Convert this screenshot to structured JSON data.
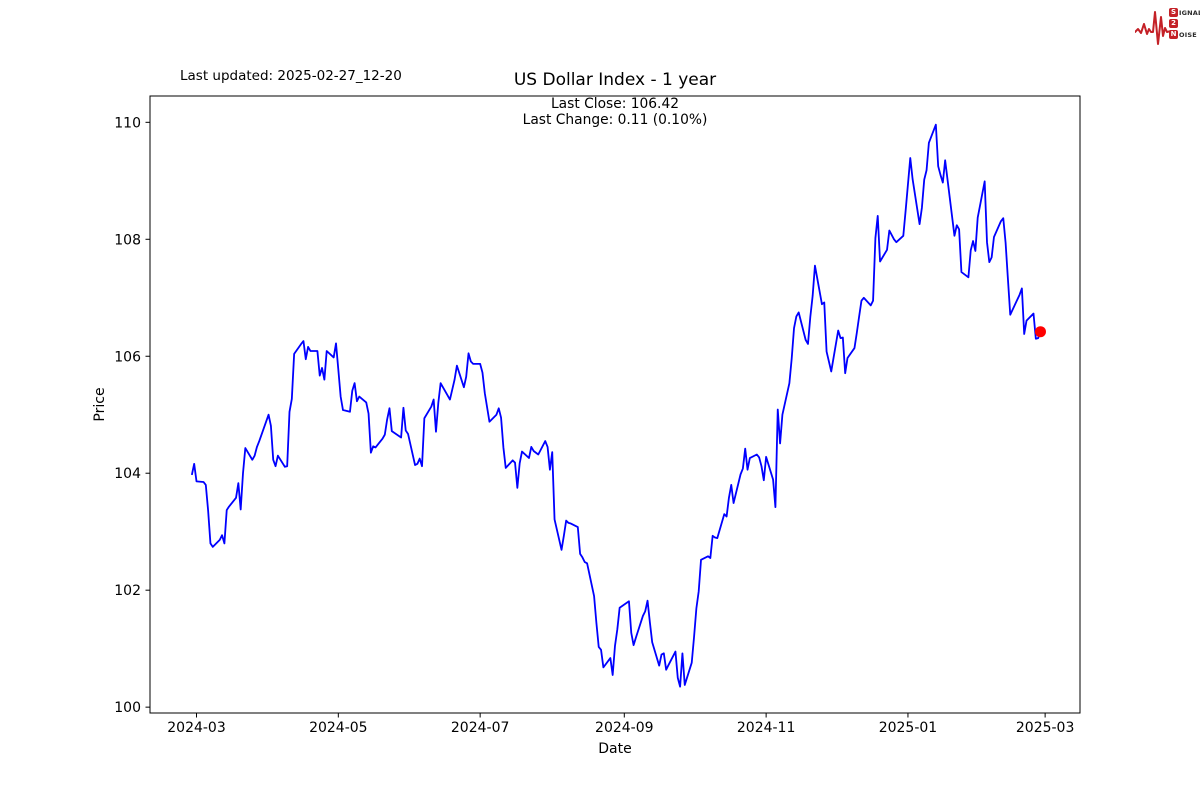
{
  "header": {
    "last_updated": "Last updated: 2025-02-27_12-20",
    "title": "US Dollar Index - 1 year",
    "annotation_line1": "Last Close: 106.42",
    "annotation_line2": "Last Change: 0.11 (0.10%)"
  },
  "logo": {
    "badge1": "S",
    "word1": "IGNAL",
    "badge2": "2",
    "badge3": "N",
    "word2": "OISE",
    "red": "#c42127"
  },
  "chart_data": {
    "type": "line",
    "title": "US Dollar Index - 1 year",
    "xlabel": "Date",
    "ylabel": "Price",
    "grid": false,
    "x_ticks": [
      {
        "date": "2024-03-01",
        "label": "2024-03"
      },
      {
        "date": "2024-05-01",
        "label": "2024-05"
      },
      {
        "date": "2024-07-01",
        "label": "2024-07"
      },
      {
        "date": "2024-09-01",
        "label": "2024-09"
      },
      {
        "date": "2024-11-01",
        "label": "2024-11"
      },
      {
        "date": "2025-01-01",
        "label": "2025-01"
      },
      {
        "date": "2025-03-01",
        "label": "2025-03"
      }
    ],
    "y_ticks": [
      100,
      102,
      104,
      106,
      108,
      110
    ],
    "xlim": [
      "2024-02-10",
      "2025-03-16"
    ],
    "ylim": [
      99.9,
      110.45
    ],
    "line_color": "#0000ff",
    "line_width": 1.8,
    "marker_color": "#ff0000",
    "marker_radius": 5.5,
    "last_close": 106.42,
    "last_change": 0.11,
    "last_change_pct": "0.10%",
    "series": [
      {
        "name": "US Dollar Index",
        "points": [
          [
            "2024-02-28",
            103.97
          ],
          [
            "2024-02-29",
            104.16
          ],
          [
            "2024-03-01",
            103.86
          ],
          [
            "2024-03-04",
            103.85
          ],
          [
            "2024-03-05",
            103.8
          ],
          [
            "2024-03-06",
            103.36
          ],
          [
            "2024-03-07",
            102.8
          ],
          [
            "2024-03-08",
            102.74
          ],
          [
            "2024-03-11",
            102.86
          ],
          [
            "2024-03-12",
            102.94
          ],
          [
            "2024-03-13",
            102.8
          ],
          [
            "2024-03-14",
            103.37
          ],
          [
            "2024-03-15",
            103.43
          ],
          [
            "2024-03-18",
            103.58
          ],
          [
            "2024-03-19",
            103.83
          ],
          [
            "2024-03-20",
            103.38
          ],
          [
            "2024-03-21",
            104.0
          ],
          [
            "2024-03-22",
            104.43
          ],
          [
            "2024-03-25",
            104.23
          ],
          [
            "2024-03-26",
            104.3
          ],
          [
            "2024-03-27",
            104.45
          ],
          [
            "2024-03-28",
            104.55
          ],
          [
            "2024-04-01",
            105.0
          ],
          [
            "2024-04-02",
            104.81
          ],
          [
            "2024-04-03",
            104.23
          ],
          [
            "2024-04-04",
            104.12
          ],
          [
            "2024-04-05",
            104.3
          ],
          [
            "2024-04-08",
            104.11
          ],
          [
            "2024-04-09",
            104.12
          ],
          [
            "2024-04-10",
            105.05
          ],
          [
            "2024-04-11",
            105.27
          ],
          [
            "2024-04-12",
            106.04
          ],
          [
            "2024-04-15",
            106.21
          ],
          [
            "2024-04-16",
            106.26
          ],
          [
            "2024-04-17",
            105.95
          ],
          [
            "2024-04-18",
            106.16
          ],
          [
            "2024-04-19",
            106.09
          ],
          [
            "2024-04-22",
            106.09
          ],
          [
            "2024-04-23",
            105.67
          ],
          [
            "2024-04-24",
            105.8
          ],
          [
            "2024-04-25",
            105.6
          ],
          [
            "2024-04-26",
            106.09
          ],
          [
            "2024-04-29",
            105.98
          ],
          [
            "2024-04-30",
            106.22
          ],
          [
            "2024-05-01",
            105.77
          ],
          [
            "2024-05-02",
            105.31
          ],
          [
            "2024-05-03",
            105.08
          ],
          [
            "2024-05-06",
            105.05
          ],
          [
            "2024-05-07",
            105.41
          ],
          [
            "2024-05-08",
            105.54
          ],
          [
            "2024-05-09",
            105.23
          ],
          [
            "2024-05-10",
            105.31
          ],
          [
            "2024-05-13",
            105.21
          ],
          [
            "2024-05-14",
            105.02
          ],
          [
            "2024-05-15",
            104.35
          ],
          [
            "2024-05-16",
            104.46
          ],
          [
            "2024-05-17",
            104.44
          ],
          [
            "2024-05-20",
            104.59
          ],
          [
            "2024-05-21",
            104.66
          ],
          [
            "2024-05-22",
            104.92
          ],
          [
            "2024-05-23",
            105.11
          ],
          [
            "2024-05-24",
            104.72
          ],
          [
            "2024-05-28",
            104.61
          ],
          [
            "2024-05-29",
            105.12
          ],
          [
            "2024-05-30",
            104.73
          ],
          [
            "2024-05-31",
            104.67
          ],
          [
            "2024-06-03",
            104.14
          ],
          [
            "2024-06-04",
            104.16
          ],
          [
            "2024-06-05",
            104.25
          ],
          [
            "2024-06-06",
            104.12
          ],
          [
            "2024-06-07",
            104.94
          ],
          [
            "2024-06-10",
            105.14
          ],
          [
            "2024-06-11",
            105.26
          ],
          [
            "2024-06-12",
            104.71
          ],
          [
            "2024-06-13",
            105.2
          ],
          [
            "2024-06-14",
            105.54
          ],
          [
            "2024-06-17",
            105.33
          ],
          [
            "2024-06-18",
            105.26
          ],
          [
            "2024-06-20",
            105.6
          ],
          [
            "2024-06-21",
            105.84
          ],
          [
            "2024-06-24",
            105.47
          ],
          [
            "2024-06-25",
            105.65
          ],
          [
            "2024-06-26",
            106.05
          ],
          [
            "2024-06-27",
            105.91
          ],
          [
            "2024-06-28",
            105.87
          ],
          [
            "2024-07-01",
            105.87
          ],
          [
            "2024-07-02",
            105.72
          ],
          [
            "2024-07-03",
            105.37
          ],
          [
            "2024-07-05",
            104.88
          ],
          [
            "2024-07-08",
            105.0
          ],
          [
            "2024-07-09",
            105.11
          ],
          [
            "2024-07-10",
            104.95
          ],
          [
            "2024-07-11",
            104.44
          ],
          [
            "2024-07-12",
            104.09
          ],
          [
            "2024-07-15",
            104.22
          ],
          [
            "2024-07-16",
            104.18
          ],
          [
            "2024-07-17",
            103.75
          ],
          [
            "2024-07-18",
            104.17
          ],
          [
            "2024-07-19",
            104.37
          ],
          [
            "2024-07-22",
            104.26
          ],
          [
            "2024-07-23",
            104.45
          ],
          [
            "2024-07-24",
            104.38
          ],
          [
            "2024-07-25",
            104.35
          ],
          [
            "2024-07-26",
            104.32
          ],
          [
            "2024-07-29",
            104.55
          ],
          [
            "2024-07-30",
            104.45
          ],
          [
            "2024-07-31",
            104.06
          ],
          [
            "2024-08-01",
            104.36
          ],
          [
            "2024-08-02",
            103.21
          ],
          [
            "2024-08-05",
            102.69
          ],
          [
            "2024-08-06",
            102.93
          ],
          [
            "2024-08-07",
            103.19
          ],
          [
            "2024-08-08",
            103.15
          ],
          [
            "2024-08-09",
            103.14
          ],
          [
            "2024-08-12",
            103.08
          ],
          [
            "2024-08-13",
            102.62
          ],
          [
            "2024-08-14",
            102.56
          ],
          [
            "2024-08-15",
            102.48
          ],
          [
            "2024-08-16",
            102.46
          ],
          [
            "2024-08-19",
            101.9
          ],
          [
            "2024-08-20",
            101.44
          ],
          [
            "2024-08-21",
            101.03
          ],
          [
            "2024-08-22",
            100.98
          ],
          [
            "2024-08-23",
            100.68
          ],
          [
            "2024-08-26",
            100.84
          ],
          [
            "2024-08-27",
            100.55
          ],
          [
            "2024-08-28",
            101.05
          ],
          [
            "2024-08-29",
            101.33
          ],
          [
            "2024-08-30",
            101.7
          ],
          [
            "2024-09-03",
            101.81
          ],
          [
            "2024-09-04",
            101.27
          ],
          [
            "2024-09-05",
            101.06
          ],
          [
            "2024-09-06",
            101.19
          ],
          [
            "2024-09-09",
            101.56
          ],
          [
            "2024-09-10",
            101.64
          ],
          [
            "2024-09-11",
            101.82
          ],
          [
            "2024-09-12",
            101.45
          ],
          [
            "2024-09-13",
            101.11
          ],
          [
            "2024-09-16",
            100.71
          ],
          [
            "2024-09-17",
            100.9
          ],
          [
            "2024-09-18",
            100.92
          ],
          [
            "2024-09-19",
            100.64
          ],
          [
            "2024-09-20",
            100.72
          ],
          [
            "2024-09-23",
            100.95
          ],
          [
            "2024-09-24",
            100.5
          ],
          [
            "2024-09-25",
            100.35
          ],
          [
            "2024-09-26",
            100.92
          ],
          [
            "2024-09-27",
            100.38
          ],
          [
            "2024-09-30",
            100.76
          ],
          [
            "2024-10-01",
            101.2
          ],
          [
            "2024-10-02",
            101.69
          ],
          [
            "2024-10-03",
            101.98
          ],
          [
            "2024-10-04",
            102.52
          ],
          [
            "2024-10-07",
            102.58
          ],
          [
            "2024-10-08",
            102.55
          ],
          [
            "2024-10-09",
            102.93
          ],
          [
            "2024-10-10",
            102.9
          ],
          [
            "2024-10-11",
            102.89
          ],
          [
            "2024-10-14",
            103.3
          ],
          [
            "2024-10-15",
            103.26
          ],
          [
            "2024-10-16",
            103.58
          ],
          [
            "2024-10-17",
            103.8
          ],
          [
            "2024-10-18",
            103.49
          ],
          [
            "2024-10-21",
            103.98
          ],
          [
            "2024-10-22",
            104.08
          ],
          [
            "2024-10-23",
            104.42
          ],
          [
            "2024-10-24",
            104.06
          ],
          [
            "2024-10-25",
            104.26
          ],
          [
            "2024-10-28",
            104.32
          ],
          [
            "2024-10-29",
            104.27
          ],
          [
            "2024-10-30",
            104.12
          ],
          [
            "2024-10-31",
            103.88
          ],
          [
            "2024-11-01",
            104.28
          ],
          [
            "2024-11-04",
            103.89
          ],
          [
            "2024-11-05",
            103.42
          ],
          [
            "2024-11-06",
            105.09
          ],
          [
            "2024-11-07",
            104.51
          ],
          [
            "2024-11-08",
            105.0
          ],
          [
            "2024-11-11",
            105.54
          ],
          [
            "2024-11-12",
            105.96
          ],
          [
            "2024-11-13",
            106.48
          ],
          [
            "2024-11-14",
            106.68
          ],
          [
            "2024-11-15",
            106.75
          ],
          [
            "2024-11-18",
            106.28
          ],
          [
            "2024-11-19",
            106.21
          ],
          [
            "2024-11-20",
            106.67
          ],
          [
            "2024-11-21",
            107.03
          ],
          [
            "2024-11-22",
            107.55
          ],
          [
            "2024-11-25",
            106.89
          ],
          [
            "2024-11-26",
            106.92
          ],
          [
            "2024-11-27",
            106.08
          ],
          [
            "2024-11-29",
            105.74
          ],
          [
            "2024-12-02",
            106.44
          ],
          [
            "2024-12-03",
            106.31
          ],
          [
            "2024-12-04",
            106.32
          ],
          [
            "2024-12-05",
            105.71
          ],
          [
            "2024-12-06",
            105.97
          ],
          [
            "2024-12-09",
            106.14
          ],
          [
            "2024-12-10",
            106.4
          ],
          [
            "2024-12-11",
            106.68
          ],
          [
            "2024-12-12",
            106.95
          ],
          [
            "2024-12-13",
            107.0
          ],
          [
            "2024-12-16",
            106.87
          ],
          [
            "2024-12-17",
            106.95
          ],
          [
            "2024-12-18",
            108.02
          ],
          [
            "2024-12-19",
            108.4
          ],
          [
            "2024-12-20",
            107.62
          ],
          [
            "2024-12-23",
            107.82
          ],
          [
            "2024-12-24",
            108.15
          ],
          [
            "2024-12-26",
            108.0
          ],
          [
            "2024-12-27",
            107.95
          ],
          [
            "2024-12-30",
            108.06
          ],
          [
            "2024-12-31",
            108.49
          ],
          [
            "2025-01-02",
            109.39
          ],
          [
            "2025-01-03",
            109.03
          ],
          [
            "2025-01-06",
            108.26
          ],
          [
            "2025-01-07",
            108.54
          ],
          [
            "2025-01-08",
            109.02
          ],
          [
            "2025-01-09",
            109.18
          ],
          [
            "2025-01-10",
            109.65
          ],
          [
            "2025-01-13",
            109.96
          ],
          [
            "2025-01-14",
            109.25
          ],
          [
            "2025-01-15",
            109.1
          ],
          [
            "2025-01-16",
            108.97
          ],
          [
            "2025-01-17",
            109.35
          ],
          [
            "2025-01-21",
            108.06
          ],
          [
            "2025-01-22",
            108.24
          ],
          [
            "2025-01-23",
            108.17
          ],
          [
            "2025-01-24",
            107.44
          ],
          [
            "2025-01-27",
            107.35
          ],
          [
            "2025-01-28",
            107.81
          ],
          [
            "2025-01-29",
            107.97
          ],
          [
            "2025-01-30",
            107.8
          ],
          [
            "2025-01-31",
            108.37
          ],
          [
            "2025-02-03",
            108.99
          ],
          [
            "2025-02-04",
            107.95
          ],
          [
            "2025-02-05",
            107.61
          ],
          [
            "2025-02-06",
            107.69
          ],
          [
            "2025-02-07",
            108.04
          ],
          [
            "2025-02-10",
            108.31
          ],
          [
            "2025-02-11",
            108.36
          ],
          [
            "2025-02-12",
            107.94
          ],
          [
            "2025-02-13",
            107.32
          ],
          [
            "2025-02-14",
            106.71
          ],
          [
            "2025-02-18",
            107.05
          ],
          [
            "2025-02-19",
            107.16
          ],
          [
            "2025-02-20",
            106.38
          ],
          [
            "2025-02-21",
            106.61
          ],
          [
            "2025-02-24",
            106.73
          ],
          [
            "2025-02-25",
            106.3
          ],
          [
            "2025-02-26",
            106.31
          ],
          [
            "2025-02-27",
            106.42
          ]
        ]
      }
    ]
  }
}
